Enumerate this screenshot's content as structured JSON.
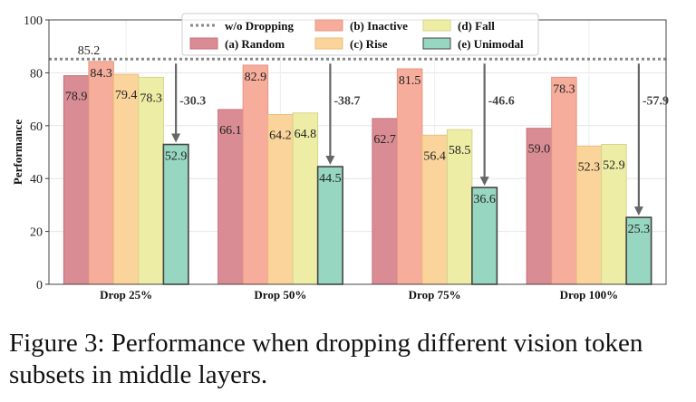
{
  "chart_data": {
    "type": "bar",
    "ylabel": "Performance",
    "xlabel": "",
    "ylim": [
      0,
      100
    ],
    "yticks": [
      0,
      20,
      40,
      60,
      80,
      100
    ],
    "grid": true,
    "legend_position": "top",
    "categories": [
      "Drop 25%",
      "Drop 50%",
      "Drop 75%",
      "Drop 100%"
    ],
    "baseline": {
      "name": "w/o Dropping",
      "value": 85.2,
      "label": "85.2",
      "color": "#888888"
    },
    "series": [
      {
        "name": "(a) Random",
        "values": [
          78.9,
          66.1,
          62.7,
          59.0
        ],
        "labels": [
          "78.9",
          "66.1",
          "62.7",
          "59.0"
        ],
        "color": "#d98c94",
        "edge": "#c86f7a"
      },
      {
        "name": "(b) Inactive",
        "values": [
          84.3,
          82.9,
          81.5,
          78.3
        ],
        "labels": [
          "84.3",
          "82.9",
          "81.5",
          "78.3"
        ],
        "color": "#f6ad9b",
        "edge": "#e99582"
      },
      {
        "name": "(c) Rise",
        "values": [
          79.4,
          64.2,
          56.4,
          52.3
        ],
        "labels": [
          "79.4",
          "64.2",
          "56.4",
          "52.3"
        ],
        "color": "#fad49b",
        "edge": "#ecbd7c"
      },
      {
        "name": "(d) Fall",
        "values": [
          78.3,
          64.8,
          58.5,
          52.9
        ],
        "labels": [
          "78.3",
          "64.8",
          "58.5",
          "52.9"
        ],
        "color": "#eeeda6",
        "edge": "#d6d489"
      },
      {
        "name": "(e) Unimodal",
        "values": [
          52.9,
          44.5,
          36.6,
          25.3
        ],
        "labels": [
          "52.9",
          "44.5",
          "36.6",
          "25.3"
        ],
        "color": "#97d6c0",
        "edge": "#444444"
      }
    ],
    "annotations": [
      "-30.3",
      "-38.7",
      "-46.6",
      "-57.9"
    ]
  },
  "caption": "Figure 3: Performance when dropping different vision token subsets in middle layers."
}
